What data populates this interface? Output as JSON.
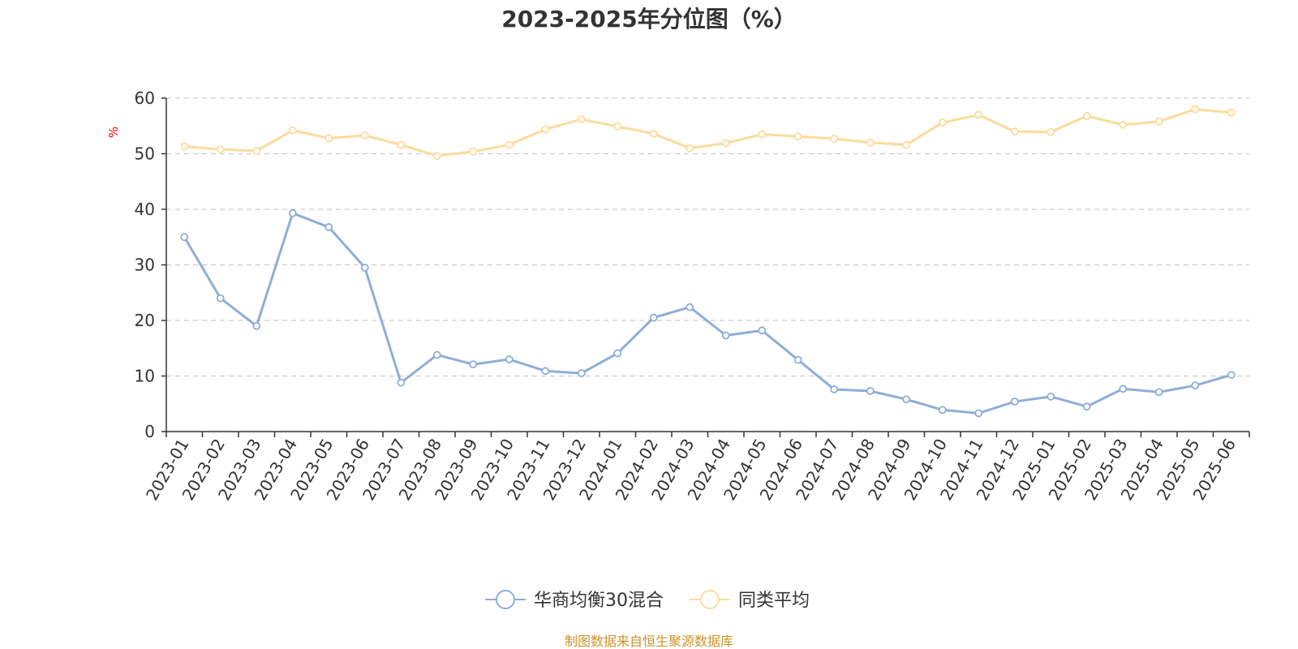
{
  "chart_data": {
    "type": "line",
    "title": "2023-2025年分位图（%）",
    "ylabel": "%",
    "xlabel": "",
    "ylim": [
      0,
      60
    ],
    "yticks": [
      0,
      10,
      20,
      30,
      40,
      50,
      60
    ],
    "grid": true,
    "legend_position": "bottom",
    "categories": [
      "2023-01",
      "2023-02",
      "2023-03",
      "2023-04",
      "2023-05",
      "2023-06",
      "2023-07",
      "2023-08",
      "2023-09",
      "2023-10",
      "2023-11",
      "2023-12",
      "2024-01",
      "2024-02",
      "2024-03",
      "2024-04",
      "2024-05",
      "2024-06",
      "2024-07",
      "2024-08",
      "2024-09",
      "2024-10",
      "2024-11",
      "2024-12",
      "2025-01",
      "2025-02",
      "2025-03",
      "2025-04",
      "2025-05",
      "2025-06"
    ],
    "series": [
      {
        "name": "华商均衡30混合",
        "color": "#8eaed8",
        "values": [
          35.0,
          24.0,
          19.0,
          39.3,
          36.8,
          29.5,
          8.8,
          13.8,
          12.1,
          13.0,
          10.9,
          10.5,
          14.1,
          20.5,
          22.4,
          17.3,
          18.2,
          12.9,
          7.6,
          7.3,
          5.8,
          3.9,
          3.3,
          5.4,
          6.3,
          4.5,
          7.7,
          7.1,
          8.3,
          10.2
        ]
      },
      {
        "name": "同类平均",
        "color": "#fddb9c",
        "values": [
          51.3,
          50.8,
          50.5,
          54.2,
          52.8,
          53.3,
          51.6,
          49.6,
          50.4,
          51.6,
          54.4,
          56.2,
          54.9,
          53.6,
          51.0,
          51.9,
          53.5,
          53.1,
          52.7,
          52.0,
          51.6,
          55.6,
          57.0,
          54.0,
          53.9,
          56.8,
          55.2,
          55.8,
          58.0,
          57.4
        ]
      }
    ]
  },
  "footer": "制图数据来自恒生聚源数据库"
}
